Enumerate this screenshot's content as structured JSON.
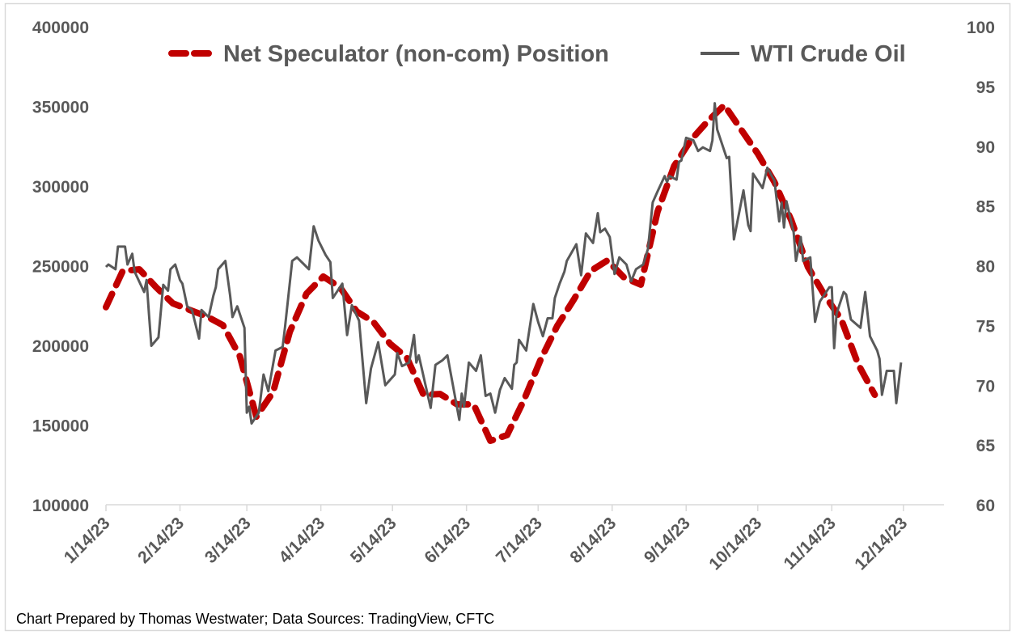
{
  "chart_data": {
    "type": "line",
    "title": "",
    "footer": "Chart Prepared by Thomas Westwater; Data Sources: TradingView, CFTC",
    "legend_position": "top",
    "grid": false,
    "x_axis": {
      "type": "date",
      "range": [
        "2023-01-14",
        "2023-12-31"
      ],
      "tick_labels": [
        "1/14/23",
        "2/14/23",
        "3/14/23",
        "4/14/23",
        "5/14/23",
        "6/14/23",
        "7/14/23",
        "8/14/23",
        "9/14/23",
        "10/14/23",
        "11/14/23",
        "12/14/23"
      ],
      "tick_dates": [
        "2023-01-14",
        "2023-02-14",
        "2023-03-14",
        "2023-04-14",
        "2023-05-14",
        "2023-06-14",
        "2023-07-14",
        "2023-08-14",
        "2023-09-14",
        "2023-10-14",
        "2023-11-14",
        "2023-12-14"
      ]
    },
    "y_left": {
      "range": [
        100000,
        400000
      ],
      "tick_labels": [
        "100000",
        "150000",
        "200000",
        "250000",
        "300000",
        "350000",
        "400000"
      ]
    },
    "y_right": {
      "range": [
        60,
        100
      ],
      "tick_labels": [
        "60",
        "65",
        "70",
        "75",
        "80",
        "85",
        "90",
        "95",
        "100"
      ]
    },
    "series": [
      {
        "name": "Net Speculator (non-com) Position",
        "axis": "left",
        "style": "dashed",
        "color": "#C00000",
        "x": [
          "2023-01-14",
          "2023-01-21",
          "2023-01-28",
          "2023-02-04",
          "2023-02-11",
          "2023-02-18",
          "2023-02-25",
          "2023-03-04",
          "2023-03-11",
          "2023-03-18",
          "2023-03-25",
          "2023-04-01",
          "2023-04-08",
          "2023-04-15",
          "2023-04-22",
          "2023-04-29",
          "2023-05-06",
          "2023-05-13",
          "2023-05-20",
          "2023-05-27",
          "2023-06-03",
          "2023-06-10",
          "2023-06-17",
          "2023-06-24",
          "2023-07-01",
          "2023-07-08",
          "2023-07-15",
          "2023-07-22",
          "2023-07-29",
          "2023-08-05",
          "2023-08-12",
          "2023-08-19",
          "2023-08-26",
          "2023-09-02",
          "2023-09-09",
          "2023-09-16",
          "2023-09-23",
          "2023-09-30",
          "2023-10-07",
          "2023-10-14",
          "2023-10-21",
          "2023-10-28",
          "2023-11-04",
          "2023-11-11",
          "2023-11-18",
          "2023-11-25",
          "2023-12-02"
        ],
        "y": [
          224000,
          246700,
          247700,
          236500,
          226400,
          222300,
          218300,
          212700,
          193400,
          155300,
          170600,
          208600,
          232500,
          243200,
          236500,
          221300,
          214700,
          201000,
          192400,
          169000,
          169500,
          163000,
          163000,
          140100,
          143700,
          165500,
          190900,
          212200,
          228900,
          246700,
          253300,
          242600,
          238100,
          283800,
          312700,
          328900,
          340600,
          350800,
          335500,
          320300,
          302500,
          278700,
          249200,
          231500,
          216200,
          188300,
          169000
        ]
      },
      {
        "name": "WTI Crude Oil",
        "axis": "right",
        "style": "solid",
        "color": "#595959",
        "x": [
          "2023-01-14",
          "2023-01-15",
          "2023-01-18",
          "2023-01-19",
          "2023-01-22",
          "2023-01-23",
          "2023-01-25",
          "2023-01-26",
          "2023-01-30",
          "2023-01-31",
          "2023-02-01",
          "2023-02-02",
          "2023-02-05",
          "2023-02-07",
          "2023-02-09",
          "2023-02-10",
          "2023-02-12",
          "2023-02-14",
          "2023-02-15",
          "2023-02-17",
          "2023-02-19",
          "2023-02-22",
          "2023-02-23",
          "2023-02-26",
          "2023-02-28",
          "2023-03-01",
          "2023-03-02",
          "2023-03-05",
          "2023-03-07",
          "2023-03-08",
          "2023-03-10",
          "2023-03-13",
          "2023-03-14",
          "2023-03-15",
          "2023-03-16",
          "2023-03-19",
          "2023-03-21",
          "2023-03-23",
          "2023-03-26",
          "2023-03-29",
          "2023-03-30",
          "2023-04-02",
          "2023-04-04",
          "2023-04-09",
          "2023-04-11",
          "2023-04-13",
          "2023-04-16",
          "2023-04-18",
          "2023-04-19",
          "2023-04-23",
          "2023-04-25",
          "2023-04-27",
          "2023-04-30",
          "2023-05-03",
          "2023-05-05",
          "2023-05-08",
          "2023-05-11",
          "2023-05-15",
          "2023-05-16",
          "2023-05-18",
          "2023-05-21",
          "2023-05-23",
          "2023-05-24",
          "2023-05-25",
          "2023-05-30",
          "2023-06-01",
          "2023-06-04",
          "2023-06-06",
          "2023-06-11",
          "2023-06-12",
          "2023-06-13",
          "2023-06-15",
          "2023-06-18",
          "2023-06-20",
          "2023-06-22",
          "2023-06-24",
          "2023-06-26",
          "2023-06-28",
          "2023-06-30",
          "2023-07-03",
          "2023-07-04",
          "2023-07-05",
          "2023-07-06",
          "2023-07-09",
          "2023-07-12",
          "2023-07-14",
          "2023-07-16",
          "2023-07-18",
          "2023-07-20",
          "2023-07-21",
          "2023-07-23",
          "2023-07-25",
          "2023-07-26",
          "2023-07-30",
          "2023-08-01",
          "2023-08-03",
          "2023-08-06",
          "2023-08-08",
          "2023-08-09",
          "2023-08-11",
          "2023-08-13",
          "2023-08-15",
          "2023-08-17",
          "2023-08-20",
          "2023-08-22",
          "2023-08-24",
          "2023-08-27",
          "2023-08-29",
          "2023-08-31",
          "2023-09-02",
          "2023-09-05",
          "2023-09-06",
          "2023-09-07",
          "2023-09-10",
          "2023-09-11",
          "2023-09-12",
          "2023-09-14",
          "2023-09-17",
          "2023-09-19",
          "2023-09-21",
          "2023-09-24",
          "2023-09-25",
          "2023-09-26",
          "2023-09-27",
          "2023-10-01",
          "2023-10-02",
          "2023-10-04",
          "2023-10-08",
          "2023-10-10",
          "2023-10-11",
          "2023-10-12",
          "2023-10-16",
          "2023-10-18",
          "2023-10-21",
          "2023-10-23",
          "2023-10-24",
          "2023-10-25",
          "2023-10-26",
          "2023-10-29",
          "2023-10-30",
          "2023-11-01",
          "2023-11-02",
          "2023-11-05",
          "2023-11-07",
          "2023-11-09",
          "2023-11-13",
          "2023-11-14",
          "2023-11-15",
          "2023-11-16",
          "2023-11-19",
          "2023-11-20",
          "2023-11-22",
          "2023-11-26",
          "2023-11-28",
          "2023-11-30",
          "2023-12-03",
          "2023-12-04",
          "2023-12-05",
          "2023-12-07",
          "2023-12-10",
          "2023-12-11",
          "2023-12-13"
        ],
        "y": [
          79.9,
          80.1,
          79.7,
          81.6,
          81.6,
          80.1,
          81.0,
          79.5,
          77.8,
          78.8,
          76.0,
          73.3,
          74.0,
          78.4,
          77.9,
          79.7,
          80.1,
          78.8,
          78.5,
          76.6,
          76.3,
          73.9,
          76.3,
          75.7,
          77.5,
          78.2,
          79.7,
          80.4,
          77.5,
          75.7,
          76.6,
          74.8,
          67.7,
          68.2,
          66.8,
          67.7,
          70.9,
          69.5,
          72.9,
          73.2,
          74.9,
          80.4,
          80.7,
          79.7,
          83.3,
          82.1,
          80.9,
          80.3,
          77.3,
          78.5,
          74.2,
          76.7,
          75.4,
          68.5,
          71.4,
          73.6,
          70.0,
          70.9,
          72.7,
          71.6,
          71.9,
          74.2,
          71.9,
          72.5,
          68.1,
          71.7,
          72.1,
          72.5,
          67.1,
          69.3,
          68.2,
          71.9,
          71.2,
          72.5,
          69.1,
          69.3,
          67.7,
          69.6,
          70.6,
          69.7,
          71.7,
          71.9,
          73.8,
          72.9,
          76.8,
          75.3,
          74.1,
          75.6,
          75.6,
          77.3,
          78.5,
          79.5,
          80.4,
          81.8,
          79.2,
          82.7,
          81.9,
          84.4,
          82.8,
          83.1,
          82.4,
          79.3,
          80.7,
          80.1,
          78.7,
          79.7,
          80.1,
          81.4,
          85.3,
          86.2,
          87.5,
          87.0,
          87.5,
          87.2,
          88.7,
          88.8,
          90.7,
          90.5,
          89.6,
          89.9,
          89.6,
          90.5,
          93.6,
          91.4,
          89.0,
          89.1,
          82.2,
          86.3,
          83.4,
          82.9,
          87.7,
          86.5,
          88.2,
          87.1,
          83.7,
          85.3,
          83.2,
          85.4,
          82.8,
          80.4,
          82.4,
          80.4,
          80.7,
          75.3,
          77.0,
          78.2,
          78.2,
          73.1,
          76.0,
          77.8,
          77.6,
          75.5,
          74.8,
          77.8,
          74.1,
          72.9,
          72.2,
          69.2,
          71.2,
          71.2,
          68.5,
          71.9
        ]
      }
    ]
  }
}
